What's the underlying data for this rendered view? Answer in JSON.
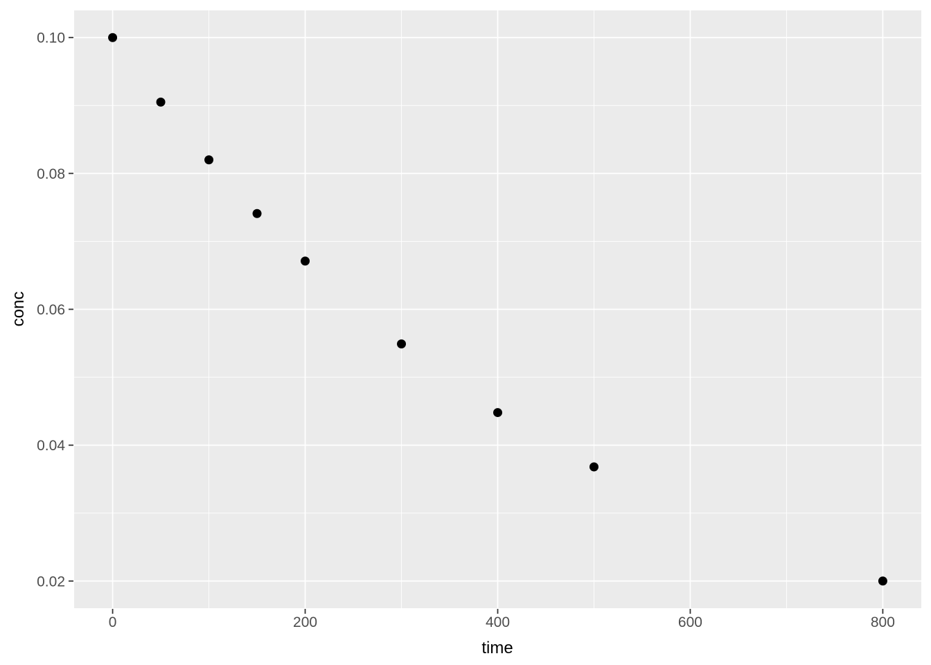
{
  "chart_data": {
    "type": "scatter",
    "title": "",
    "xlabel": "time",
    "ylabel": "conc",
    "x": [
      0,
      50,
      100,
      150,
      200,
      300,
      400,
      500,
      800
    ],
    "y": [
      0.1,
      0.0905,
      0.082,
      0.0741,
      0.0671,
      0.0549,
      0.0448,
      0.0368,
      0.02
    ],
    "xlim": [
      -40,
      840
    ],
    "ylim": [
      0.016,
      0.104
    ],
    "x_major_ticks": [
      0,
      200,
      400,
      600,
      800
    ],
    "x_tick_labels": [
      "0",
      "200",
      "400",
      "600",
      "800"
    ],
    "x_minor_ticks": [
      100,
      300,
      500,
      700
    ],
    "y_major_ticks": [
      0.02,
      0.04,
      0.06,
      0.08,
      0.1
    ],
    "y_tick_labels": [
      "0.02",
      "0.04",
      "0.06",
      "0.08",
      "0.10"
    ],
    "y_minor_ticks": [
      0.03,
      0.05,
      0.07,
      0.09
    ],
    "grid": true,
    "legend_position": "none",
    "style": {
      "page_bg": "#FFFFFF",
      "panel_bg": "#EBEBEB",
      "grid_color": "#FFFFFF",
      "point_color": "#000000",
      "tick_mark_color": "#333333",
      "tick_label_color": "#4D4D4D",
      "axis_title_color": "#000000"
    }
  }
}
